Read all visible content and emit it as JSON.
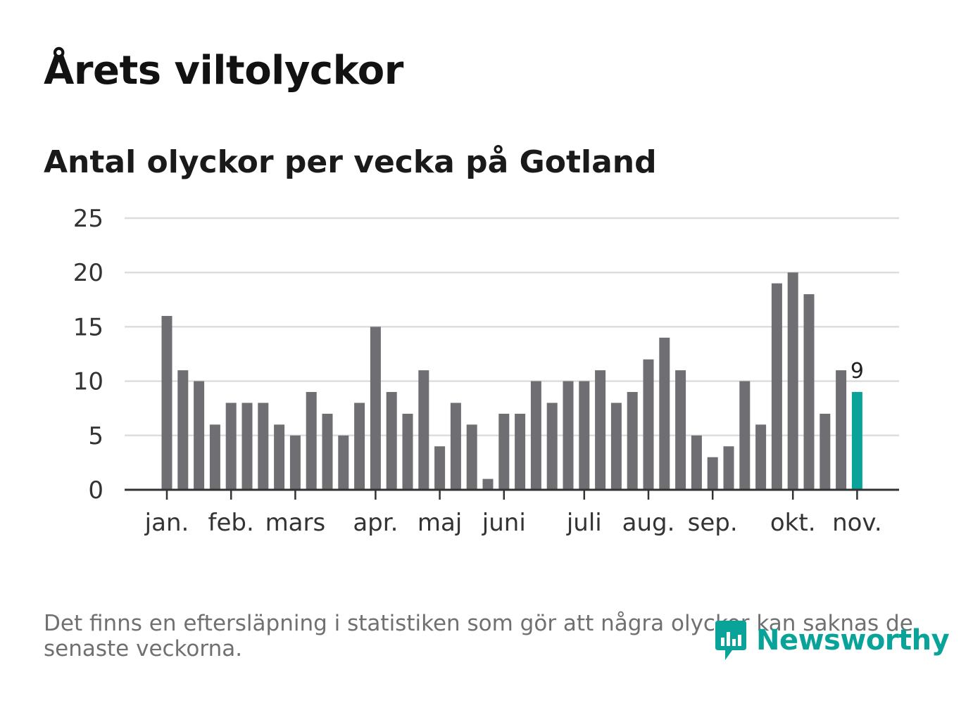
{
  "title": "Årets viltolyckor",
  "subtitle": "Antal olyckor per vecka på Gotland",
  "footnote": "Det finns en eftersläpning i statistiken som gör att några olyckor kan saknas de senaste veckorna.",
  "brand": {
    "name": "Newsworthy",
    "icon": "newsworthy-logo-icon",
    "color": "#0aa39a"
  },
  "chart_data": {
    "type": "bar",
    "title": "Antal olyckor per vecka på Gotland",
    "xlabel": "",
    "ylabel": "",
    "ylim": [
      0,
      25
    ],
    "yticks": [
      0,
      5,
      10,
      15,
      20,
      25
    ],
    "grid": true,
    "weeks": [
      1,
      2,
      3,
      4,
      5,
      6,
      7,
      8,
      9,
      10,
      11,
      12,
      13,
      14,
      15,
      16,
      17,
      18,
      19,
      20,
      21,
      22,
      23,
      24,
      25,
      26,
      27,
      28,
      29,
      30,
      31,
      32,
      33,
      34,
      35,
      36,
      37,
      38,
      39,
      40,
      41,
      42,
      43,
      44
    ],
    "values": [
      16,
      11,
      10,
      6,
      8,
      8,
      8,
      6,
      5,
      9,
      7,
      5,
      8,
      15,
      9,
      7,
      11,
      4,
      8,
      6,
      1,
      7,
      7,
      10,
      8,
      10,
      10,
      11,
      8,
      9,
      12,
      14,
      11,
      5,
      3,
      4,
      10,
      6,
      19,
      20,
      18,
      7,
      11,
      9
    ],
    "month_labels": [
      {
        "label": "jan.",
        "week": 1
      },
      {
        "label": "feb.",
        "week": 5
      },
      {
        "label": "mars",
        "week": 9
      },
      {
        "label": "apr.",
        "week": 14
      },
      {
        "label": "maj",
        "week": 18
      },
      {
        "label": "juni",
        "week": 22
      },
      {
        "label": "juli",
        "week": 27
      },
      {
        "label": "aug.",
        "week": 31
      },
      {
        "label": "sep.",
        "week": 35
      },
      {
        "label": "okt.",
        "week": 40
      },
      {
        "label": "nov.",
        "week": 44
      }
    ],
    "highlight": {
      "week": 44,
      "value": 9,
      "label": "9"
    },
    "colors": {
      "bar": "#6f6e73",
      "highlight": "#0aa39a",
      "grid": "#dddddd",
      "axis": "#333333"
    }
  }
}
